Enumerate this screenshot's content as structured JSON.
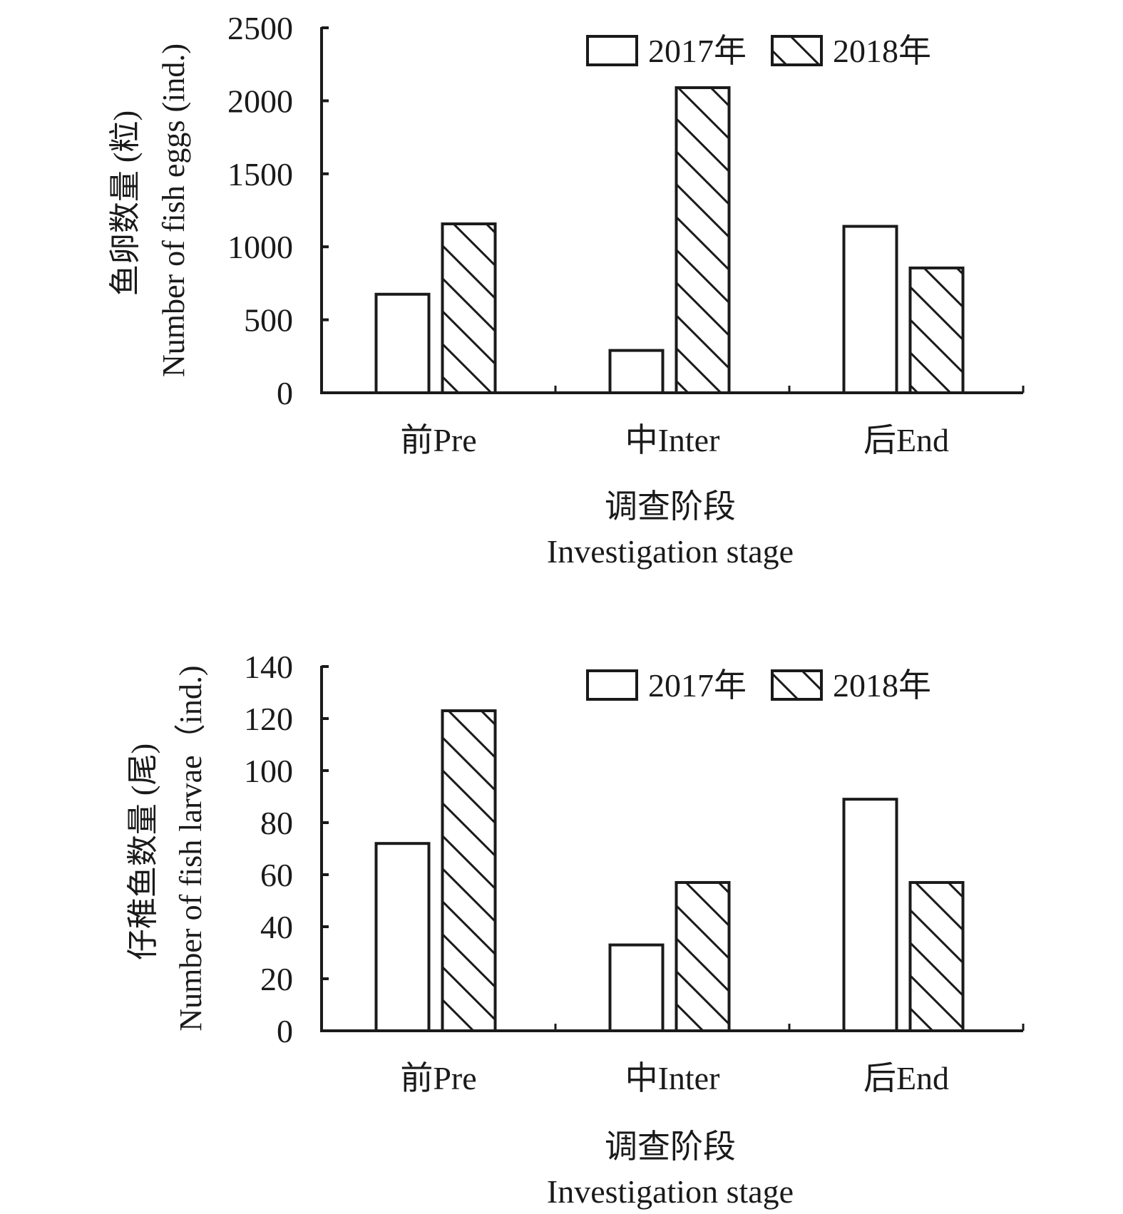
{
  "chart_data": [
    {
      "type": "bar",
      "title": "",
      "categories": [
        "前Pre",
        "中Inter",
        "后End"
      ],
      "series": [
        {
          "name": "2017年",
          "pattern": "none",
          "values": [
            675,
            290,
            1140
          ]
        },
        {
          "name": "2018年",
          "pattern": "hatched",
          "values": [
            1157,
            2090,
            855
          ]
        }
      ],
      "xlabel": [
        "调查阶段",
        "Investigation stage"
      ],
      "ylabel": [
        "鱼卵数量 (粒)",
        "Number of fish eggs (ind.)"
      ],
      "ylim": [
        0,
        2500
      ],
      "yticks": [
        0,
        500,
        1000,
        1500,
        2000,
        2500
      ],
      "ytick_labels": [
        "0",
        "500",
        "1000",
        "1500",
        "2000",
        "2500"
      ],
      "grid": false,
      "legend": "top-right"
    },
    {
      "type": "bar",
      "title": "",
      "categories": [
        "前Pre",
        "中Inter",
        "后End"
      ],
      "series": [
        {
          "name": "2017年",
          "pattern": "none",
          "values": [
            72,
            33,
            89
          ]
        },
        {
          "name": "2018年",
          "pattern": "hatched",
          "values": [
            123,
            57,
            57
          ]
        }
      ],
      "xlabel": [
        "调查阶段",
        "Investigation stage"
      ],
      "ylabel": [
        "仔稚鱼数量 (尾)",
        "Number of fish larvae（ind.)"
      ],
      "ylim": [
        0,
        140
      ],
      "yticks": [
        0,
        20,
        40,
        60,
        80,
        100,
        120,
        140
      ],
      "ytick_labels": [
        "0",
        "20",
        "40",
        "60",
        "80",
        "100",
        "120",
        "140"
      ],
      "grid": false,
      "legend": "top-right"
    }
  ],
  "colors": {
    "stroke": "#1a1a1a",
    "fill": "#ffffff"
  }
}
